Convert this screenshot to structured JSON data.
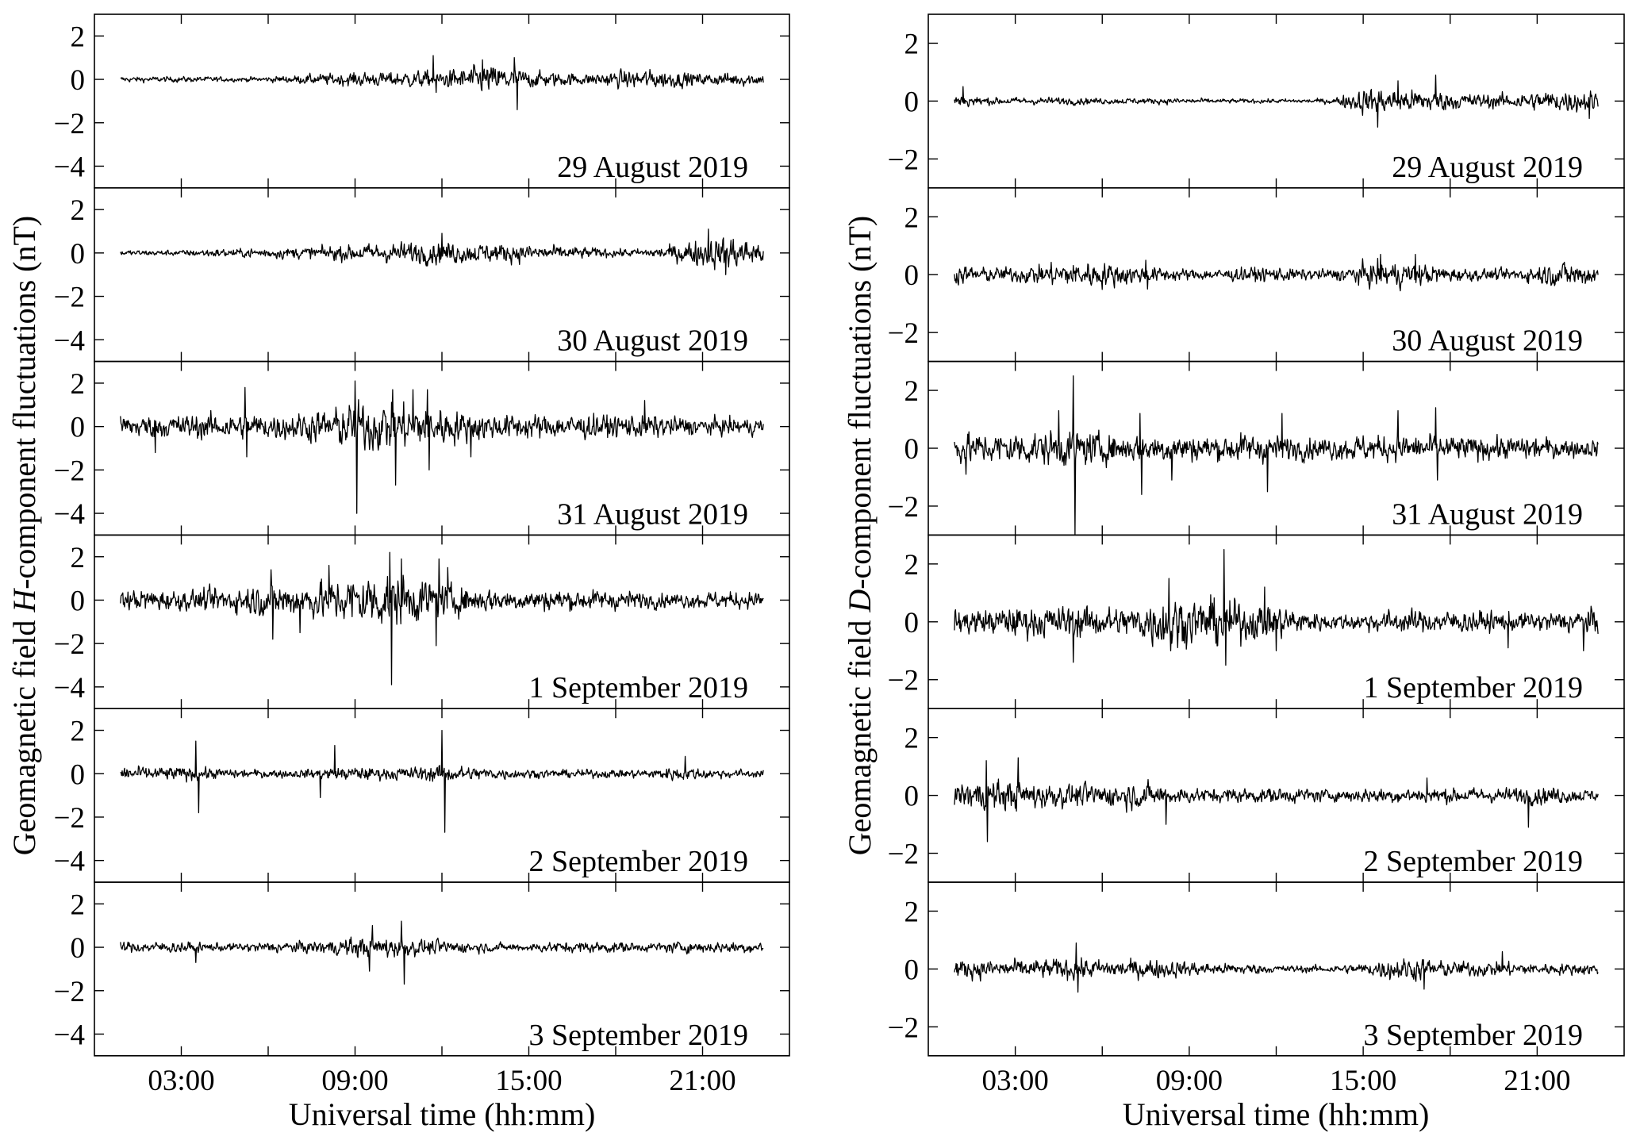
{
  "chart_data": [
    {
      "type": "line",
      "component": "H",
      "ylabel_parts": [
        "Geomagnetic field ",
        "H",
        "-component fluctuations (nT)"
      ],
      "xlabel": "Universal time (hh:mm)",
      "xlim_hours": [
        0,
        24
      ],
      "ylim": [
        -5,
        3
      ],
      "yticks": [
        2,
        0,
        -2,
        -4
      ],
      "ytick_labels": [
        "2",
        "0",
        "−2",
        "−4"
      ],
      "xticks_hours": [
        3,
        6,
        9,
        12,
        15,
        18,
        21
      ],
      "xtick_labels": [
        {
          "hour": 3,
          "label": "03:00"
        },
        {
          "hour": 9,
          "label": "09:00"
        },
        {
          "hour": 15,
          "label": "15:00"
        },
        {
          "hour": 21,
          "label": "21:00"
        }
      ],
      "data_span_hours": [
        0.9,
        23.1
      ],
      "panels": [
        {
          "date": "29 August 2019",
          "hourly_amplitude": [
            0.1,
            0.1,
            0.1,
            0.1,
            0.1,
            0.08,
            0.1,
            0.15,
            0.2,
            0.25,
            0.25,
            0.3,
            0.3,
            0.45,
            0.5,
            0.3,
            0.25,
            0.2,
            0.3,
            0.35,
            0.3,
            0.2,
            0.25,
            0.2
          ],
          "peaks": [
            [
              11.7,
              1.1
            ],
            [
              11.8,
              -0.6
            ],
            [
              13.4,
              0.9
            ],
            [
              14.5,
              1.0
            ],
            [
              14.6,
              -1.4
            ]
          ]
        },
        {
          "date": "30 August 2019",
          "hourly_amplitude": [
            0.1,
            0.1,
            0.1,
            0.1,
            0.15,
            0.15,
            0.2,
            0.2,
            0.25,
            0.3,
            0.35,
            0.4,
            0.4,
            0.35,
            0.35,
            0.3,
            0.25,
            0.2,
            0.15,
            0.15,
            0.3,
            0.5,
            0.6,
            0.4
          ],
          "peaks": [
            [
              12.0,
              0.9
            ],
            [
              21.2,
              1.1
            ],
            [
              21.8,
              -1.0
            ]
          ]
        },
        {
          "date": "31 August 2019",
          "hourly_amplitude": [
            0.3,
            0.4,
            0.4,
            0.45,
            0.45,
            0.45,
            0.45,
            0.5,
            0.6,
            0.9,
            0.9,
            0.8,
            0.7,
            0.5,
            0.45,
            0.45,
            0.4,
            0.45,
            0.4,
            0.45,
            0.35,
            0.3,
            0.3,
            0.3
          ],
          "peaks": [
            [
              2.1,
              -1.2
            ],
            [
              5.2,
              1.8
            ],
            [
              5.25,
              -1.4
            ],
            [
              9.0,
              2.1
            ],
            [
              9.05,
              -4.0
            ],
            [
              10.3,
              1.7
            ],
            [
              10.4,
              -2.7
            ],
            [
              11.0,
              1.7
            ],
            [
              11.5,
              1.7
            ],
            [
              11.55,
              -2.0
            ],
            [
              13.0,
              -1.4
            ],
            [
              19.0,
              1.2
            ]
          ]
        },
        {
          "date": "1 September 2019",
          "hourly_amplitude": [
            0.3,
            0.35,
            0.4,
            0.35,
            0.4,
            0.5,
            0.6,
            0.6,
            0.7,
            0.9,
            1.0,
            0.8,
            0.6,
            0.45,
            0.4,
            0.35,
            0.4,
            0.35,
            0.35,
            0.3,
            0.25,
            0.3,
            0.3,
            0.3
          ],
          "peaks": [
            [
              6.1,
              1.4
            ],
            [
              6.15,
              -1.8
            ],
            [
              7.1,
              -1.5
            ],
            [
              8.1,
              1.6
            ],
            [
              10.2,
              2.2
            ],
            [
              10.25,
              -3.9
            ],
            [
              10.6,
              1.9
            ],
            [
              11.8,
              -2.1
            ],
            [
              11.9,
              1.9
            ],
            [
              12.2,
              1.5
            ]
          ]
        },
        {
          "date": "2 September 2019",
          "hourly_amplitude": [
            0.2,
            0.25,
            0.25,
            0.25,
            0.2,
            0.15,
            0.15,
            0.15,
            0.2,
            0.25,
            0.2,
            0.25,
            0.3,
            0.25,
            0.2,
            0.15,
            0.15,
            0.15,
            0.15,
            0.15,
            0.25,
            0.2,
            0.15,
            0.15
          ],
          "peaks": [
            [
              3.5,
              1.5
            ],
            [
              3.6,
              -1.8
            ],
            [
              7.8,
              -1.1
            ],
            [
              8.3,
              1.3
            ],
            [
              12.0,
              2.0
            ],
            [
              12.1,
              -2.7
            ],
            [
              20.4,
              0.8
            ]
          ]
        },
        {
          "date": "3 September 2019",
          "hourly_amplitude": [
            0.15,
            0.2,
            0.2,
            0.2,
            0.15,
            0.15,
            0.2,
            0.2,
            0.25,
            0.35,
            0.4,
            0.3,
            0.25,
            0.2,
            0.15,
            0.15,
            0.2,
            0.2,
            0.2,
            0.15,
            0.2,
            0.2,
            0.2,
            0.2
          ],
          "peaks": [
            [
              3.5,
              -0.7
            ],
            [
              9.5,
              -1.1
            ],
            [
              9.6,
              1.0
            ],
            [
              10.6,
              1.2
            ],
            [
              10.7,
              -1.7
            ]
          ]
        }
      ]
    },
    {
      "type": "line",
      "component": "D",
      "ylabel_parts": [
        "Geomagnetic field ",
        "D",
        "-component fluctuations (nT)"
      ],
      "xlabel": "Universal time (hh:mm)",
      "xlim_hours": [
        0,
        24
      ],
      "ylim": [
        -3,
        3
      ],
      "yticks": [
        2,
        0,
        -2
      ],
      "ytick_labels": [
        "2",
        "0",
        "−2"
      ],
      "xticks_hours": [
        3,
        6,
        9,
        12,
        15,
        18,
        21
      ],
      "xtick_labels": [
        {
          "hour": 3,
          "label": "03:00"
        },
        {
          "hour": 9,
          "label": "09:00"
        },
        {
          "hour": 15,
          "label": "15:00"
        },
        {
          "hour": 21,
          "label": "21:00"
        }
      ],
      "data_span_hours": [
        0.9,
        23.1
      ],
      "panels": [
        {
          "date": "29 August 2019",
          "hourly_amplitude": [
            0.25,
            0.2,
            0.1,
            0.1,
            0.1,
            0.1,
            0.08,
            0.08,
            0.08,
            0.08,
            0.06,
            0.06,
            0.06,
            0.06,
            0.08,
            0.35,
            0.3,
            0.3,
            0.25,
            0.2,
            0.2,
            0.25,
            0.3,
            0.3
          ],
          "peaks": [
            [
              1.2,
              0.5
            ],
            [
              15.5,
              -0.9
            ],
            [
              16.2,
              0.7
            ],
            [
              17.5,
              0.9
            ],
            [
              22.8,
              -0.6
            ]
          ]
        },
        {
          "date": "30 August 2019",
          "hourly_amplitude": [
            0.2,
            0.25,
            0.2,
            0.2,
            0.3,
            0.35,
            0.35,
            0.25,
            0.2,
            0.15,
            0.15,
            0.2,
            0.2,
            0.15,
            0.15,
            0.3,
            0.35,
            0.3,
            0.2,
            0.15,
            0.15,
            0.25,
            0.35,
            0.3
          ],
          "peaks": [
            [
              7.5,
              0.5
            ],
            [
              7.55,
              -0.5
            ],
            [
              15.6,
              0.7
            ],
            [
              16.8,
              0.7
            ]
          ]
        },
        {
          "date": "31 August 2019",
          "hourly_amplitude": [
            0.35,
            0.4,
            0.4,
            0.45,
            0.45,
            0.5,
            0.4,
            0.35,
            0.4,
            0.35,
            0.35,
            0.4,
            0.35,
            0.3,
            0.3,
            0.35,
            0.35,
            0.35,
            0.35,
            0.3,
            0.3,
            0.3,
            0.25,
            0.25
          ],
          "peaks": [
            [
              1.3,
              -0.9
            ],
            [
              4.5,
              1.3
            ],
            [
              5.0,
              2.5
            ],
            [
              5.05,
              -3.0
            ],
            [
              7.3,
              1.2
            ],
            [
              7.35,
              -1.6
            ],
            [
              8.4,
              -1.1
            ],
            [
              11.7,
              -1.5
            ],
            [
              12.2,
              1.2
            ],
            [
              16.2,
              1.3
            ],
            [
              17.5,
              1.4
            ],
            [
              17.55,
              -1.1
            ]
          ]
        },
        {
          "date": "1 September 2019",
          "hourly_amplitude": [
            0.3,
            0.35,
            0.35,
            0.4,
            0.4,
            0.45,
            0.4,
            0.4,
            0.7,
            0.6,
            0.7,
            0.5,
            0.45,
            0.3,
            0.2,
            0.25,
            0.3,
            0.3,
            0.3,
            0.3,
            0.25,
            0.25,
            0.3,
            0.35
          ],
          "peaks": [
            [
              5.0,
              -1.4
            ],
            [
              8.3,
              1.5
            ],
            [
              8.35,
              -1.0
            ],
            [
              10.2,
              2.5
            ],
            [
              10.25,
              -1.5
            ],
            [
              11.6,
              1.2
            ],
            [
              12.0,
              -1.0
            ],
            [
              20.0,
              -0.9
            ],
            [
              22.6,
              -1.0
            ]
          ]
        },
        {
          "date": "2 September 2019",
          "hourly_amplitude": [
            0.3,
            0.35,
            0.4,
            0.4,
            0.35,
            0.3,
            0.3,
            0.35,
            0.3,
            0.2,
            0.2,
            0.2,
            0.2,
            0.2,
            0.15,
            0.2,
            0.2,
            0.2,
            0.2,
            0.2,
            0.2,
            0.25,
            0.2,
            0.15
          ],
          "peaks": [
            [
              2.0,
              1.2
            ],
            [
              2.05,
              -1.6
            ],
            [
              3.1,
              1.3
            ],
            [
              8.2,
              -1.0
            ],
            [
              17.2,
              0.6
            ],
            [
              20.7,
              -1.1
            ]
          ]
        },
        {
          "date": "3 September 2019",
          "hourly_amplitude": [
            0.2,
            0.25,
            0.25,
            0.25,
            0.25,
            0.3,
            0.25,
            0.25,
            0.25,
            0.2,
            0.15,
            0.15,
            0.1,
            0.1,
            0.1,
            0.15,
            0.3,
            0.3,
            0.2,
            0.2,
            0.2,
            0.15,
            0.15,
            0.15
          ],
          "peaks": [
            [
              5.1,
              0.9
            ],
            [
              5.15,
              -0.8
            ],
            [
              17.1,
              -0.7
            ],
            [
              19.8,
              0.6
            ]
          ]
        }
      ]
    }
  ]
}
